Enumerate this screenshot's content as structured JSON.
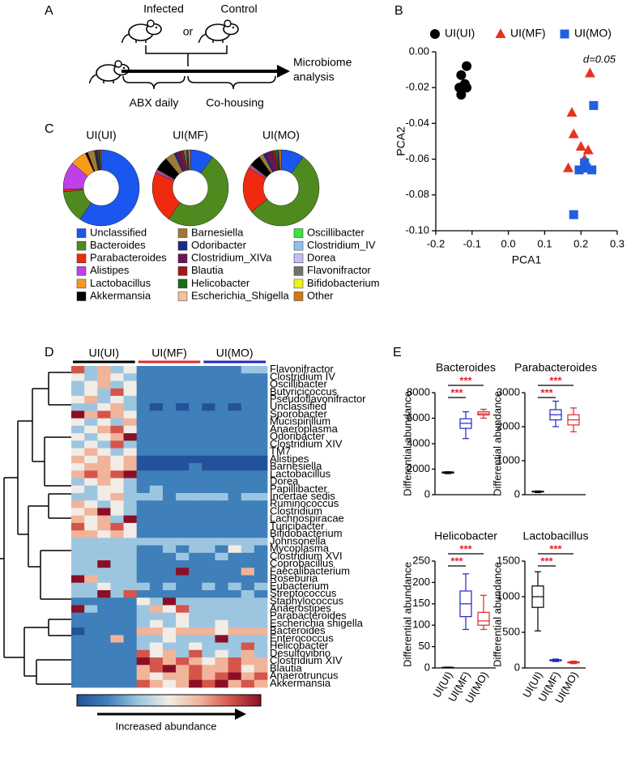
{
  "panel_labels": [
    "A",
    "B",
    "C",
    "D",
    "E"
  ],
  "diagram": {
    "infected": "Infected",
    "or": "or",
    "control": "Control",
    "abx": "ABX daily",
    "cohousing": "Co-housing",
    "outcome": [
      "Microbiome",
      "analysis"
    ]
  },
  "chart_data": [
    {
      "type": "scatter",
      "legend": "top",
      "xlabel": "PCA1",
      "ylabel": "PCA2",
      "annotation": "d=0.05",
      "xlim": [
        -0.2,
        0.3
      ],
      "ylim": [
        -0.1,
        0
      ],
      "xticks": [
        -0.2,
        -0.1,
        {
          "value": 0,
          "label": "0.0"
        },
        0.1,
        0.2,
        0.3
      ],
      "yticks": [
        {
          "value": -0.1,
          "label": "-0.10"
        },
        -0.08,
        -0.06,
        -0.04,
        -0.02,
        {
          "value": 0,
          "label": "0.00"
        }
      ],
      "series": [
        {
          "name": "UI(UI)",
          "color": "#000000",
          "marker": "circle",
          "x": [
            -0.115,
            -0.13,
            -0.12,
            -0.135,
            -0.13,
            -0.115
          ],
          "y": [
            -0.008,
            -0.013,
            -0.018,
            -0.02,
            -0.024,
            -0.02
          ]
        },
        {
          "name": "UI(MF)",
          "color": "#e8321e",
          "marker": "triangle",
          "x": [
            0.225,
            0.175,
            0.18,
            0.2,
            0.22,
            0.165,
            0.21
          ],
          "y": [
            -0.012,
            -0.034,
            -0.046,
            -0.053,
            -0.055,
            -0.065,
            -0.06
          ]
        },
        {
          "name": "UI(MO)",
          "color": "#1f5fe0",
          "marker": "square",
          "x": [
            0.235,
            0.21,
            0.215,
            0.195,
            0.23,
            0.18
          ],
          "y": [
            -0.03,
            -0.062,
            -0.065,
            -0.066,
            -0.066,
            -0.091
          ]
        }
      ]
    },
    {
      "type": "donut",
      "categories": [
        "Unclassified",
        "Bacteroides",
        "Parabacteroides",
        "Alistipes",
        "Lactobacillus",
        "Akkermansia",
        "Barnesiella",
        "Odoribacter",
        "Clostridium_XIVa",
        "Blautia",
        "Helicobacter",
        "Escherichia_Shigella",
        "Oscillibacter",
        "Clostridium_IV",
        "Dorea",
        "Flavonifractor",
        "Bifidobacterium",
        "Other"
      ],
      "colors": [
        "#1a56f0",
        "#4e8a1e",
        "#f02a0e",
        "#c040e8",
        "#f79a1c",
        "#000000",
        "#a07a34",
        "#1a2a8a",
        "#6a1458",
        "#a01818",
        "#1e6a1e",
        "#f4c0a0",
        "#40e040",
        "#90c0f0",
        "#c0c0f0",
        "#707070",
        "#f0f020",
        "#d07818"
      ],
      "series": [
        {
          "name": "UI(UI)",
          "values": [
            60,
            14,
            1,
            12,
            7,
            1,
            3,
            0.5,
            0.5,
            0.1,
            0.1,
            0.1,
            0.3,
            0.3,
            0.2,
            0.2,
            0.1,
            0.5
          ]
        },
        {
          "name": "UI(MF)",
          "values": [
            10,
            50,
            22,
            1,
            0.5,
            6,
            4,
            1,
            2,
            1,
            0.5,
            0.5,
            0.3,
            0.3,
            0.2,
            0.2,
            0.1,
            1
          ]
        },
        {
          "name": "UI(MO)",
          "values": [
            10,
            55,
            20,
            1,
            0.5,
            5,
            2,
            1,
            3,
            1,
            0.5,
            0.3,
            0.3,
            0.3,
            0.2,
            0.2,
            0.1,
            1
          ]
        }
      ]
    },
    {
      "type": "heatmap",
      "zlim": [
        -3,
        3
      ],
      "colorbar_label": "Increased abundance",
      "groups": [
        {
          "name": "UI(UI)",
          "color": "#000000"
        },
        {
          "name": "UI(MF)",
          "color": "#e0262d"
        },
        {
          "name": "UI(MO)",
          "color": "#2323c8"
        }
      ],
      "rows": [
        "Flavonifractor",
        "Clostridium IV",
        "Oscillibacter",
        "Butyricicoccus",
        "Pseudoflavonifractor",
        "Unclassified",
        "Sporobacter",
        "Mucispirillum",
        "Anaeroplasma",
        "Odoribacter",
        "Clostridium XIV",
        "TM7",
        "Alistipes",
        "Barnesiella",
        "Lactobacillus",
        "Dorea",
        "Papillibacter",
        "Incertae sedis",
        "Ruminococcus",
        "Clostridium",
        "Lachnospiracae",
        "Turicibacter",
        "Bifidobacterium",
        "Johnsonella",
        "Mycoplasma",
        "Clostridium XVI",
        "Coprobacillus",
        "Faecalibacterium",
        "Roseburia",
        "Eubacterium",
        "Streptococcus",
        "Staphylococcus",
        "Anaerostipes",
        "Parabacteroides",
        "Escherichia shigella",
        "Bacteroides",
        "Enterococcus",
        "Helicobacter",
        "Desulfovibrio",
        "Clostridium XIV",
        "Blautia",
        "Anaerotruncus",
        "Akkermansia"
      ],
      "values": [
        [
          2,
          -1,
          1,
          -1,
          0,
          -2,
          -2,
          -2,
          -2,
          -2,
          -2,
          -2,
          -2,
          -1,
          -1
        ],
        [
          0,
          -1,
          1,
          0,
          -1,
          -2,
          -2,
          -2,
          -2,
          -2,
          -2,
          -2,
          -2,
          -2,
          -2
        ],
        [
          -1,
          0,
          1,
          -1,
          0,
          -2,
          -2,
          -2,
          -2,
          -2,
          -2,
          -2,
          -2,
          -2,
          -2
        ],
        [
          -1,
          0,
          -1,
          2,
          0,
          -2,
          -2,
          -2,
          -2,
          -2,
          -2,
          -2,
          -2,
          -2,
          -2
        ],
        [
          0,
          1,
          -1,
          0,
          -1,
          -2,
          -2,
          -2,
          -2,
          -2,
          -2,
          -2,
          -2,
          -2,
          -2
        ],
        [
          -1,
          -1,
          0,
          1,
          -1,
          -2,
          -3,
          -2,
          -3,
          -2,
          -3,
          -2,
          -3,
          -2,
          -2
        ],
        [
          3,
          1,
          2,
          1,
          0,
          -2,
          -2,
          -2,
          -2,
          -2,
          -2,
          -2,
          -2,
          -2,
          -2
        ],
        [
          0,
          -1,
          0,
          -1,
          1,
          -2,
          -2,
          -2,
          -2,
          -2,
          -2,
          -2,
          -2,
          -2,
          -2
        ],
        [
          -1,
          0,
          1,
          2,
          0,
          -2,
          -2,
          -2,
          -2,
          -2,
          -2,
          -2,
          -2,
          -2,
          -2
        ],
        [
          0,
          -1,
          0,
          1,
          3,
          -2,
          -2,
          -2,
          -2,
          -2,
          -2,
          -2,
          -2,
          -2,
          -2
        ],
        [
          -1,
          0,
          -1,
          2,
          -1,
          -2,
          -2,
          -2,
          -2,
          -2,
          -2,
          -2,
          -2,
          -2,
          -2
        ],
        [
          0,
          1,
          0,
          -1,
          0,
          -2,
          -2,
          -2,
          -2,
          -2,
          -2,
          -2,
          -2,
          -2,
          -2
        ],
        [
          1,
          0,
          1,
          0,
          1,
          -3,
          -3,
          -3,
          -3,
          -3,
          -3,
          -3,
          -3,
          -3,
          -3
        ],
        [
          0,
          1,
          1,
          0,
          1,
          -3,
          -3,
          -3,
          -3,
          -2,
          -3,
          -3,
          -3,
          -3,
          -3
        ],
        [
          1,
          2,
          1,
          2,
          3,
          -2,
          -2,
          -2,
          -2,
          -2,
          -2,
          -2,
          -2,
          -2,
          -2
        ],
        [
          -1,
          0,
          1,
          0,
          -1,
          -2,
          -2,
          -2,
          -2,
          -2,
          -2,
          -2,
          -2,
          -2,
          -2
        ],
        [
          0,
          -1,
          0,
          0,
          -1,
          -2,
          -1,
          -2,
          -2,
          -2,
          -2,
          -2,
          -2,
          -2,
          -2
        ],
        [
          -1,
          -1,
          0,
          1,
          -1,
          -1,
          -1,
          -2,
          -1,
          -1,
          -1,
          -1,
          -2,
          -1,
          -1
        ],
        [
          1,
          0,
          -1,
          0,
          -1,
          -2,
          -2,
          -2,
          -2,
          -2,
          -2,
          -2,
          -2,
          -2,
          -2
        ],
        [
          0,
          1,
          3,
          0,
          -1,
          -2,
          -2,
          -2,
          -2,
          -2,
          -2,
          -2,
          -2,
          -2,
          -2
        ],
        [
          1,
          0,
          1,
          -1,
          3,
          -2,
          -2,
          -2,
          -2,
          -2,
          -2,
          -2,
          -2,
          -2,
          -2
        ],
        [
          2,
          0,
          1,
          2,
          0,
          -2,
          -2,
          -2,
          -2,
          -2,
          -2,
          -2,
          -2,
          -2,
          -2
        ],
        [
          1,
          1,
          0,
          1,
          0,
          -2,
          -2,
          -2,
          -2,
          -2,
          -2,
          -2,
          -2,
          -2,
          -2
        ],
        [
          -1,
          -1,
          -1,
          -1,
          -1,
          -1,
          -1,
          -1,
          -1,
          -1,
          -1,
          -1,
          -1,
          -1,
          -1
        ],
        [
          -1,
          -1,
          -1,
          -1,
          -1,
          -2,
          -2,
          -1,
          -2,
          -1,
          -1,
          -2,
          0,
          -1,
          -2
        ],
        [
          -1,
          -1,
          -1,
          -1,
          -1,
          -2,
          -2,
          -2,
          -1,
          -2,
          -2,
          -1,
          -2,
          -2,
          -2
        ],
        [
          -1,
          -1,
          3,
          -1,
          -1,
          -2,
          -2,
          -2,
          -2,
          -2,
          -2,
          -2,
          -2,
          -2,
          -2
        ],
        [
          -1,
          -1,
          -1,
          -1,
          -1,
          -2,
          -2,
          -2,
          3,
          -2,
          -2,
          -2,
          -2,
          1,
          -2
        ],
        [
          3,
          1,
          -1,
          -1,
          -1,
          -2,
          -2,
          -2,
          -2,
          -2,
          -2,
          -2,
          -2,
          -2,
          -2
        ],
        [
          -1,
          -1,
          0,
          -1,
          -1,
          -1,
          -2,
          -1,
          -2,
          -2,
          -1,
          -2,
          -1,
          -2,
          -1
        ],
        [
          -1,
          -1,
          3,
          -1,
          2,
          -2,
          -2,
          -2,
          -2,
          -2,
          -2,
          -2,
          -2,
          -1,
          -2
        ],
        [
          -2,
          -2,
          -2,
          -2,
          -2,
          0,
          -1,
          3,
          -1,
          -1,
          -1,
          -1,
          -1,
          -1,
          -1
        ],
        [
          3,
          -1,
          -2,
          -2,
          -2,
          -1,
          1,
          0,
          2,
          -1,
          -1,
          -1,
          -1,
          -1,
          -1
        ],
        [
          -2,
          -2,
          -2,
          -2,
          -2,
          -1,
          -1,
          -1,
          0,
          -1,
          -1,
          -1,
          -1,
          -1,
          -1
        ],
        [
          -2,
          -2,
          -2,
          -2,
          -2,
          -1,
          0,
          -1,
          0,
          -1,
          -1,
          0,
          -1,
          -1,
          -1
        ],
        [
          -3,
          -2,
          -2,
          -2,
          -2,
          1,
          1,
          0,
          1,
          1,
          1,
          0,
          1,
          1,
          1
        ],
        [
          -2,
          -2,
          -2,
          1,
          -2,
          -1,
          -1,
          0,
          -1,
          -1,
          -1,
          3,
          -1,
          -1,
          -1
        ],
        [
          -2,
          -2,
          -2,
          -2,
          -2,
          -1,
          0,
          -1,
          -1,
          0,
          -1,
          -1,
          -1,
          2,
          -1
        ],
        [
          -2,
          -2,
          -2,
          -2,
          -2,
          2,
          0,
          1,
          -1,
          2,
          -1,
          0,
          -1,
          1,
          -1
        ],
        [
          -2,
          -2,
          -2,
          -2,
          -2,
          3,
          2,
          1,
          2,
          1,
          0,
          1,
          2,
          1,
          1
        ],
        [
          -2,
          -2,
          -2,
          -2,
          -2,
          1,
          2,
          3,
          1,
          2,
          1,
          1,
          2,
          0,
          1
        ],
        [
          -2,
          -2,
          -2,
          -2,
          -2,
          1,
          0,
          1,
          1,
          2,
          1,
          2,
          3,
          1,
          2
        ],
        [
          -2,
          -2,
          -2,
          -2,
          -2,
          2,
          1,
          0,
          1,
          3,
          2,
          3,
          1,
          2,
          1
        ]
      ]
    },
    {
      "type": "box",
      "title": "Bacteroides",
      "ylabel": "Differential abundance",
      "ylim": [
        0,
        8000
      ],
      "yticks": [
        0,
        2000,
        4000,
        6000,
        8000
      ],
      "colors": [
        "#000000",
        "#2323c8",
        "#e0262d"
      ],
      "annotations": [
        "***",
        "***"
      ],
      "boxes": [
        {
          "min": 1650,
          "q1": 1700,
          "median": 1750,
          "q3": 1780,
          "max": 1800
        },
        {
          "min": 4400,
          "q1": 5200,
          "median": 5600,
          "q3": 5950,
          "max": 6500
        },
        {
          "min": 6000,
          "q1": 6250,
          "median": 6350,
          "q3": 6500,
          "max": 6700
        }
      ]
    },
    {
      "type": "box",
      "title": "Parabacteroides",
      "ylabel": "Differential abundance",
      "ylim": [
        0,
        3000
      ],
      "yticks": [
        0,
        1000,
        2000,
        3000
      ],
      "colors": [
        "#000000",
        "#2323c8",
        "#e0262d"
      ],
      "annotations": [
        "***",
        "***"
      ],
      "boxes": [
        {
          "min": 60,
          "q1": 80,
          "median": 90,
          "q3": 100,
          "max": 110
        },
        {
          "min": 2000,
          "q1": 2200,
          "median": 2350,
          "q3": 2500,
          "max": 2750
        },
        {
          "min": 1850,
          "q1": 2050,
          "median": 2200,
          "q3": 2350,
          "max": 2550
        }
      ]
    },
    {
      "type": "box",
      "title": "Helicobacter",
      "ylabel": "Differential abundance",
      "ylim": [
        0,
        250
      ],
      "yticks": [
        0,
        50,
        100,
        150,
        200,
        250
      ],
      "colors": [
        "#000000",
        "#2323c8",
        "#e0262d"
      ],
      "annotations": [
        "***",
        "***"
      ],
      "categories": [
        "UI(UI)",
        "UI(MF)",
        "UI(MO)"
      ],
      "boxes": [
        {
          "min": 0,
          "q1": 0.5,
          "median": 1,
          "q3": 1.5,
          "max": 2
        },
        {
          "min": 90,
          "q1": 120,
          "median": 150,
          "q3": 180,
          "max": 220
        },
        {
          "min": 90,
          "q1": 100,
          "median": 110,
          "q3": 130,
          "max": 170
        }
      ]
    },
    {
      "type": "box",
      "title": "Lactobacillus",
      "ylabel": "Differential abundance",
      "ylim": [
        0,
        1500
      ],
      "yticks": [
        0,
        500,
        1000,
        1500
      ],
      "colors": [
        "#000000",
        "#2323c8",
        "#e0262d"
      ],
      "annotations": [
        "***",
        "***"
      ],
      "categories": [
        "UI(UI)",
        "UI(MF)",
        "UI(MO)"
      ],
      "boxes": [
        {
          "min": 520,
          "q1": 850,
          "median": 1000,
          "q3": 1150,
          "max": 1350
        },
        {
          "min": 90,
          "q1": 100,
          "median": 110,
          "q3": 115,
          "max": 125
        },
        {
          "min": 60,
          "q1": 70,
          "median": 75,
          "q3": 85,
          "max": 95
        }
      ]
    }
  ]
}
